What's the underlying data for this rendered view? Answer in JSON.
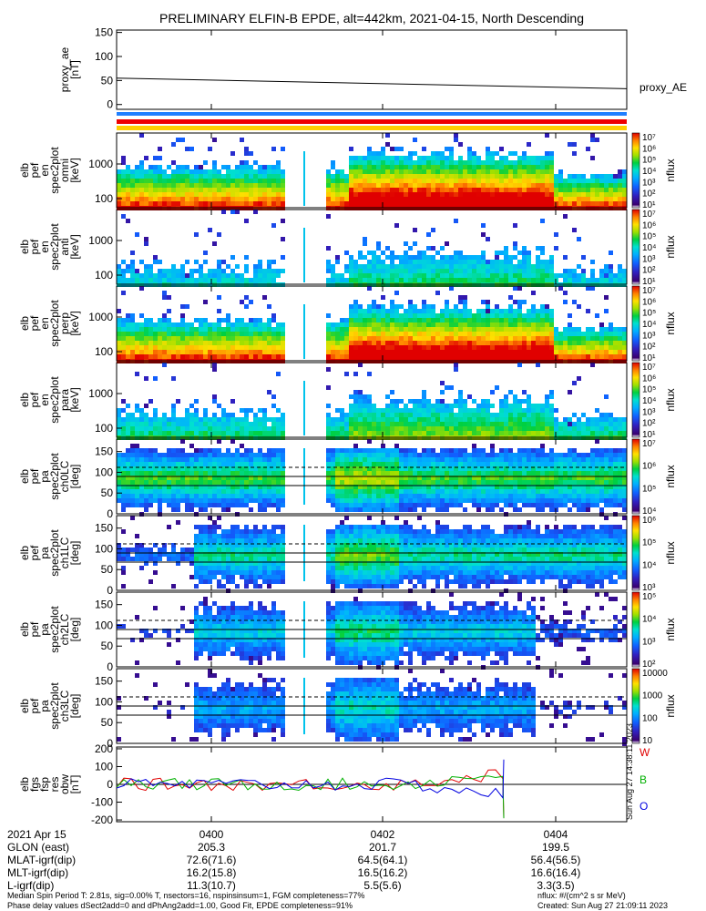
{
  "title": "PRELIMINARY ELFIN-B EPDE, alt=442km, 2021-04-15, North Descending",
  "chart_data": [
    {
      "type": "line",
      "id": "proxy_ae",
      "ylabel": [
        "proxy_ae",
        "[nT]"
      ],
      "legend": "proxy_AE",
      "ylim": [
        -10,
        155
      ],
      "yticks": [
        "150",
        "100",
        "50",
        "0"
      ],
      "x_minutes": [
        0,
        23
      ],
      "y": [
        55,
        33
      ]
    },
    {
      "type": "heatmap",
      "id": "en_0",
      "ylabel": [
        "elb",
        "pef",
        "en",
        "spec2plot",
        "omni",
        "[keV]"
      ],
      "yticks": [
        "1000",
        "100"
      ],
      "cbar_label": "nflux",
      "cbar_ticks": [
        "10⁷",
        "10⁶",
        "10⁵",
        "10⁴",
        "10³",
        "10²",
        "10¹"
      ],
      "scale": "log"
    },
    {
      "type": "heatmap",
      "id": "en_1",
      "ylabel": [
        "elb",
        "pef",
        "en",
        "spec2plot",
        "anti",
        "[keV]"
      ],
      "yticks": [
        "1000",
        "100"
      ],
      "cbar_label": "nflux",
      "cbar_ticks": [
        "10⁷",
        "10⁶",
        "10⁵",
        "10⁴",
        "10³",
        "10²",
        "10¹"
      ],
      "scale": "log"
    },
    {
      "type": "heatmap",
      "id": "en_2",
      "ylabel": [
        "elb",
        "pef",
        "en",
        "spec2plot",
        "perp",
        "[keV]"
      ],
      "yticks": [
        "1000",
        "100"
      ],
      "cbar_label": "nflux",
      "cbar_ticks": [
        "10⁷",
        "10⁶",
        "10⁵",
        "10⁴",
        "10³",
        "10²",
        "10¹"
      ],
      "scale": "log"
    },
    {
      "type": "heatmap",
      "id": "en_3",
      "ylabel": [
        "elb",
        "pef",
        "en",
        "spec2plot",
        "para",
        "[keV]"
      ],
      "yticks": [
        "1000",
        "100"
      ],
      "cbar_label": "nflux",
      "cbar_ticks": [
        "10⁷",
        "10⁶",
        "10⁵",
        "10⁴",
        "10³",
        "10²",
        "10¹"
      ],
      "scale": "log"
    },
    {
      "type": "heatmap",
      "id": "pa_0",
      "ylabel": [
        "elb",
        "pef",
        "pa",
        "spec2plot",
        "ch0LC",
        "[deg]"
      ],
      "yticks": [
        "150",
        "100",
        "50",
        "0"
      ],
      "cbar_label": "nflux",
      "cbar_ticks": [
        "10⁷",
        "10⁶",
        "10⁵",
        "10⁴"
      ],
      "scale": "log"
    },
    {
      "type": "heatmap",
      "id": "pa_1",
      "ylabel": [
        "elb",
        "pef",
        "pa",
        "spec2plot",
        "ch1LC",
        "[deg]"
      ],
      "yticks": [
        "150",
        "100",
        "50",
        "0"
      ],
      "cbar_label": "nflux",
      "cbar_ticks": [
        "10⁶",
        "10⁵",
        "10⁴",
        "10³"
      ],
      "scale": "log"
    },
    {
      "type": "heatmap",
      "id": "pa_2",
      "ylabel": [
        "elb",
        "pef",
        "pa",
        "spec2plot",
        "ch2LC",
        "[deg]"
      ],
      "yticks": [
        "150",
        "100",
        "50",
        "0"
      ],
      "cbar_label": "nflux",
      "cbar_ticks": [
        "10⁵",
        "10⁴",
        "10³",
        "10²"
      ],
      "scale": "log"
    },
    {
      "type": "heatmap",
      "id": "pa_3",
      "ylabel": [
        "elb",
        "pef",
        "pa",
        "spec2plot",
        "ch3LC",
        "[deg]"
      ],
      "yticks": [
        "150",
        "100",
        "50",
        "0"
      ],
      "cbar_label": "nflux",
      "cbar_ticks": [
        "10000",
        "1000",
        "100",
        "10"
      ],
      "scale": "log"
    },
    {
      "type": "line",
      "id": "fgs",
      "ylabel": [
        "elb",
        "fgs",
        "fsp",
        "res",
        "obw",
        "[nT]"
      ],
      "yticks": [
        "200",
        "100",
        "0",
        "-100",
        "-200"
      ],
      "ylim": [
        -210,
        210
      ],
      "legend": [
        "W",
        "B",
        "O"
      ],
      "legend_colors": [
        "#e00000",
        "#00b000",
        "#0000e0"
      ]
    }
  ],
  "x_axis": {
    "ticks": [
      "0400",
      "0402",
      "0404"
    ],
    "rows": [
      {
        "label": "2021 Apr 15",
        "values": [
          "0400",
          "0402",
          "0404"
        ]
      },
      {
        "label": "GLON (east)",
        "values": [
          "205.3",
          "201.7",
          "199.5"
        ]
      },
      {
        "label": "MLAT-igrf(dip)",
        "values": [
          "72.6(71.6)",
          "64.5(64.1)",
          "56.4(56.5)"
        ]
      },
      {
        "label": "MLT-igrf(dip)",
        "values": [
          "16.2(15.8)",
          "16.5(16.2)",
          "16.6(16.4)"
        ]
      },
      {
        "label": "L-igrf(dip)",
        "values": [
          "11.3(10.7)",
          "5.5(5.6)",
          "3.3(3.5)"
        ]
      }
    ]
  },
  "footer": {
    "line1": "Median Spin Period T: 2.81s, sig=0.00% T, nsectors=16, nspinsinsum=1, FGM completeness=77%",
    "line2": "Phase delay values dSect2add=0 and dPhAng2add=1.00, Good Fit, EPDE completeness=91%",
    "units": "nflux: #/(cm^2 s sr MeV)",
    "created": "Created: Sun Aug 27 21:09:11 2023",
    "side_stamp": "Sun Aug 27 14:38:11 2023"
  },
  "colors": {
    "status_blue": "#1f7fff",
    "status_red": "#ee0000",
    "status_yellow": "#ffd000"
  }
}
